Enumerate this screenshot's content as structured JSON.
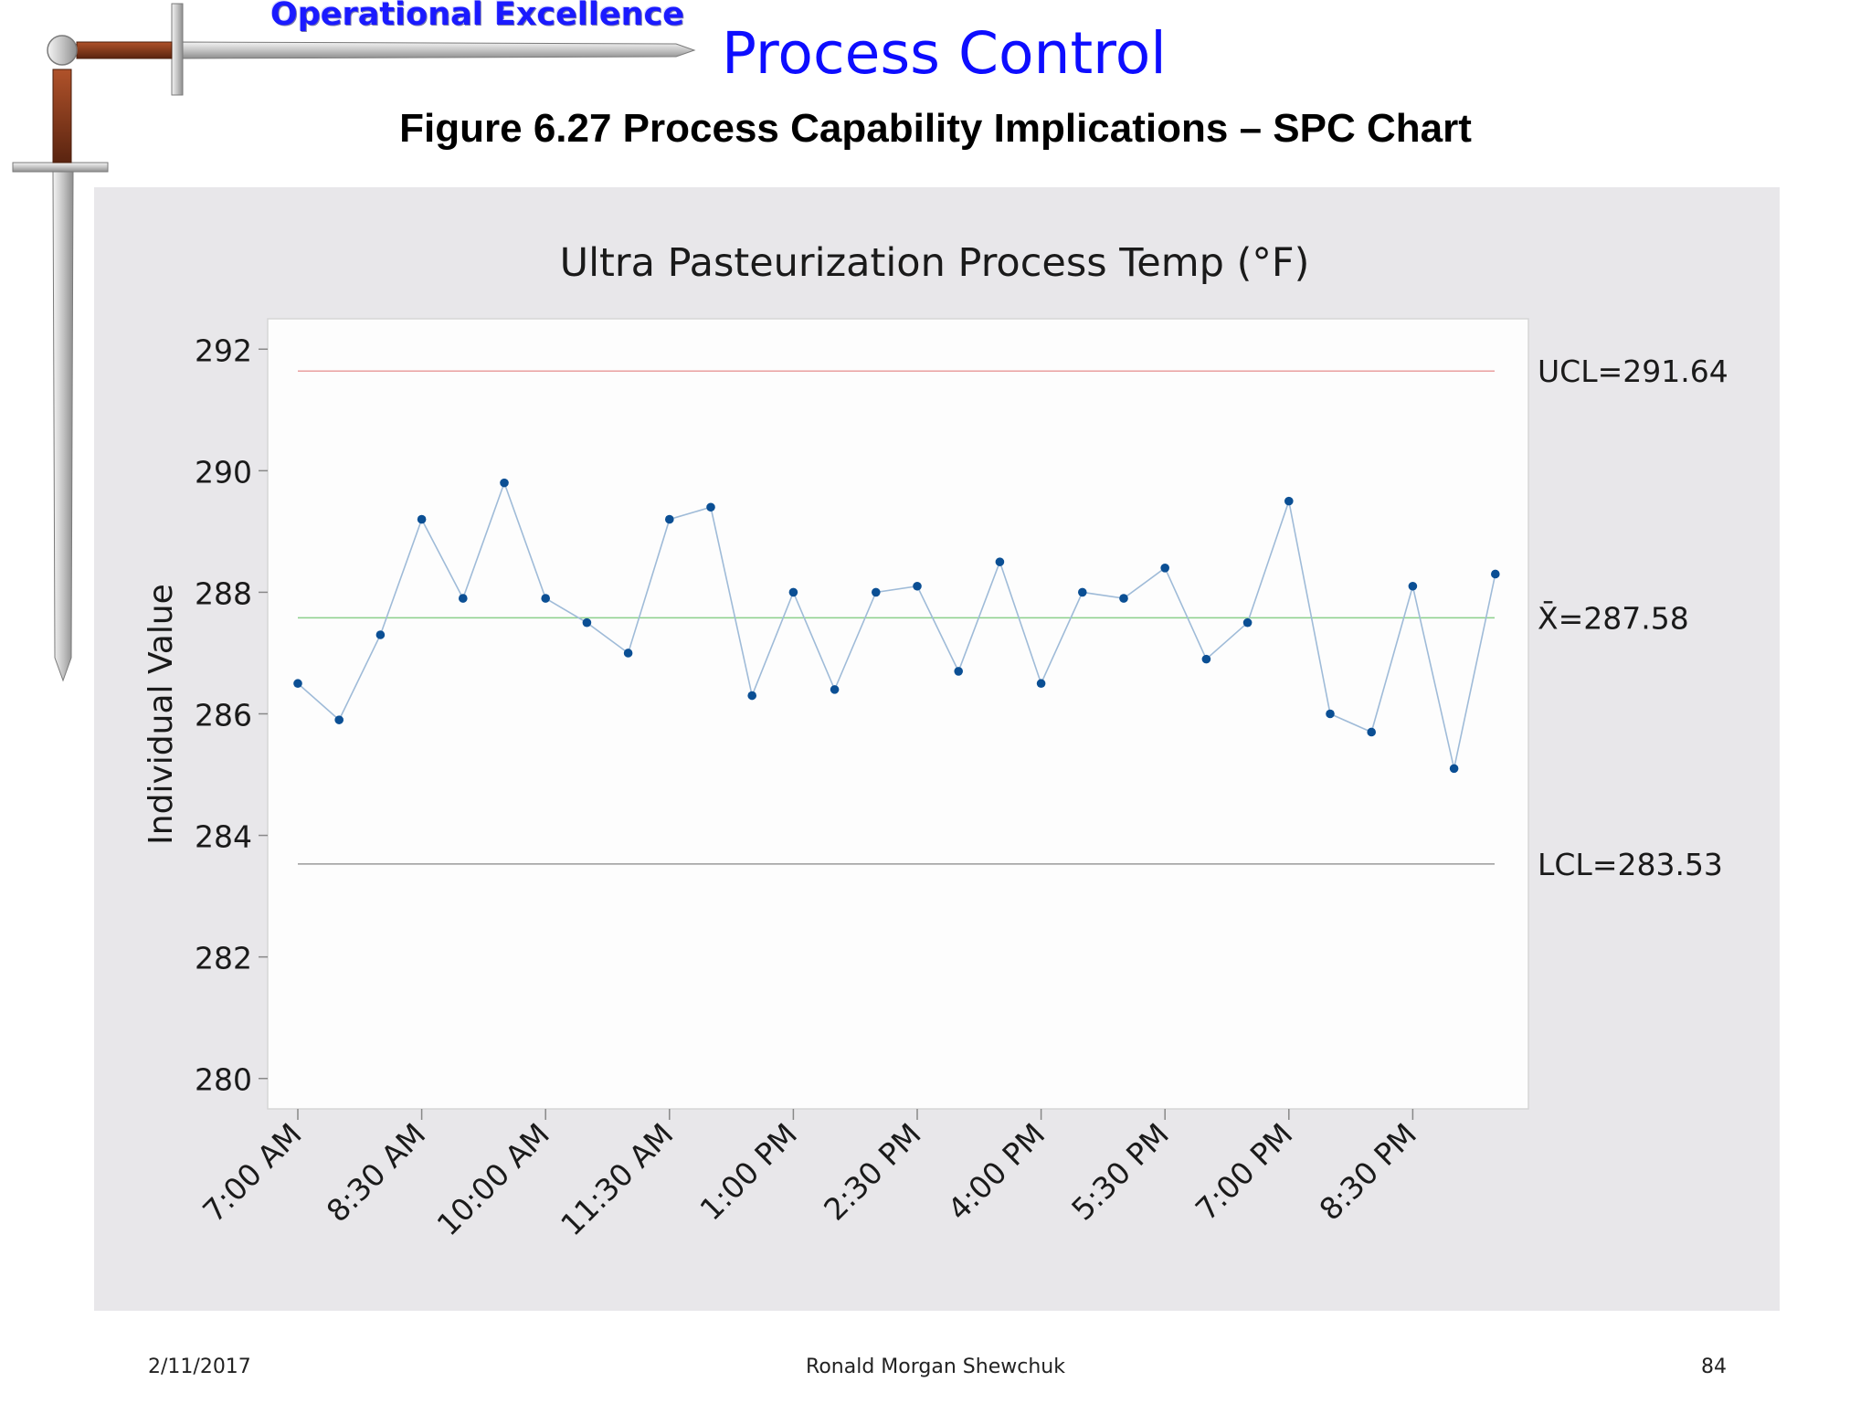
{
  "header": {
    "brand_label": "Operational Excellence",
    "slide_title": "Process Control",
    "figure_title": "Figure 6.27  Process Capability Implications – SPC Chart",
    "logo_icon": "sword-icon"
  },
  "colors": {
    "brand": "#1a1aff",
    "title": "#0d0dff",
    "panel_bg": "#e8e7ea",
    "plot_bg": "#fdfdfd",
    "data_line": "#9fbbd8",
    "data_point": "#0b4f94",
    "ucl_line": "#e9a0a0",
    "center_line": "#8ccf8c",
    "lcl_line": "#9a9a9a"
  },
  "chart_data": {
    "type": "line",
    "title": "Ultra Pasteurization Process Temp (°F)",
    "xlabel": "",
    "ylabel": "Individual Value",
    "ylim": [
      279.5,
      292.5
    ],
    "yticks": [
      280,
      282,
      284,
      286,
      288,
      290,
      292
    ],
    "x": [
      "7:00 AM",
      "7:30 AM",
      "8:00 AM",
      "8:30 AM",
      "9:00 AM",
      "9:30 AM",
      "10:00 AM",
      "10:30 AM",
      "11:00 AM",
      "11:30 AM",
      "12:00 PM",
      "12:30 PM",
      "1:00 PM",
      "1:30 PM",
      "2:00 PM",
      "2:30 PM",
      "3:00 PM",
      "3:30 PM",
      "4:00 PM",
      "4:30 PM",
      "5:00 PM",
      "5:30 PM",
      "6:00 PM",
      "6:30 PM",
      "7:00 PM",
      "7:30 PM",
      "8:00 PM",
      "8:30 PM",
      "9:00 PM",
      "9:30 PM"
    ],
    "xtick_labels": [
      "7:00 AM",
      "8:30 AM",
      "10:00 AM",
      "11:30 AM",
      "1:00 PM",
      "2:30 PM",
      "4:00 PM",
      "5:30 PM",
      "7:00 PM",
      "8:30 PM"
    ],
    "series": [
      {
        "values": [
          286.5,
          285.9,
          287.3,
          289.2,
          287.9,
          289.8,
          287.9,
          287.5,
          287.0,
          289.2,
          289.4,
          286.3,
          288.0,
          286.4,
          288.0,
          288.1,
          286.7,
          288.5,
          286.5,
          288.0,
          287.9,
          288.4,
          286.9,
          287.5,
          289.5,
          286.0,
          285.7,
          288.1,
          285.1,
          288.3
        ]
      }
    ],
    "control_limits": {
      "ucl": 291.64,
      "center": 287.58,
      "lcl": 283.53,
      "ucl_label": "UCL=291.64",
      "center_label": "X̄=287.58",
      "lcl_label": "LCL=283.53"
    },
    "grid": false,
    "legend": "none"
  },
  "footer": {
    "date": "2/11/2017",
    "author": "Ronald Morgan Shewchuk",
    "page": "84"
  }
}
